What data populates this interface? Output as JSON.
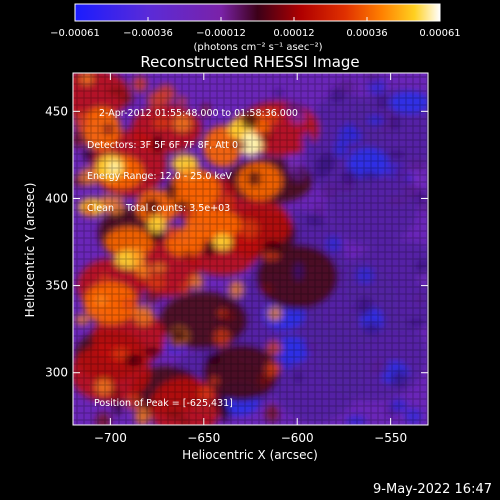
{
  "chart_data": {
    "type": "heatmap",
    "title": "Reconstructed RHESSI Image",
    "xlabel": "Heliocentric X (arcsec)",
    "ylabel": "Heliocentric Y (arcsec)",
    "xlim": [
      -720,
      -530
    ],
    "ylim": [
      270,
      472
    ],
    "x_ticks": [
      -700,
      -650,
      -600,
      -550
    ],
    "y_ticks": [
      300,
      350,
      400,
      450
    ],
    "colorbar": {
      "ticks": [
        "-0.00061",
        "-0.00036",
        "-0.00012",
        "0.00012",
        "0.00036",
        "0.00061"
      ],
      "range": [
        -0.00061,
        0.00061
      ],
      "units_label": "(photons cm⁻² s⁻¹ asec⁻²)",
      "colors": [
        "#1a1cff",
        "#5a2bd8",
        "#7a22a8",
        "#3c0018",
        "#b00000",
        "#e03000",
        "#ff8000",
        "#ffd020",
        "#ffffff"
      ]
    },
    "annotations": {
      "time_range": "2-Apr-2012 01:55:48.000 to 01:58:36.000",
      "detectors": "Detectors: 3F 5F 6F 7F 8F, Att 0",
      "energy_range": "Energy Range: 12.0 - 25.0 keV",
      "clean_counts": "Clean    Total counts: 3.5e+03",
      "peak_position": "Position of Peak = [-625,431]"
    },
    "peak": [
      -625,
      431
    ],
    "grid": false
  },
  "footer": {
    "timestamp": "9-May-2022 16:47"
  }
}
